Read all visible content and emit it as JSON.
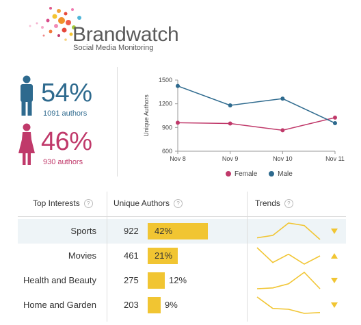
{
  "brand": {
    "name": "Brandwatch",
    "tagline": "Social Media Monitoring"
  },
  "gender": {
    "male": {
      "percent": "54%",
      "authors": "1091 authors",
      "color": "#2e6a8e"
    },
    "female": {
      "percent": "46%",
      "authors": "930 authors",
      "color": "#c0396a"
    }
  },
  "chart_data": {
    "type": "line",
    "ylabel": "Unique Authors",
    "ylim": [
      600,
      1500
    ],
    "yticks": [
      600,
      900,
      1200,
      1500
    ],
    "categories": [
      "Nov 8",
      "Nov 9",
      "Nov 10",
      "Nov 11"
    ],
    "series": [
      {
        "name": "Female",
        "color": "#c0396a",
        "values": [
          960,
          950,
          865,
          1025
        ]
      },
      {
        "name": "Male",
        "color": "#2e6a8e",
        "values": [
          1425,
          1180,
          1265,
          955
        ]
      }
    ],
    "legend_position": "bottom",
    "grid": false
  },
  "table": {
    "headers": {
      "interests": "Top Interests",
      "authors": "Unique Authors",
      "trends": "Trends"
    },
    "rows": [
      {
        "label": "Sports",
        "count": "922",
        "percent": "42%",
        "fraction": 0.42,
        "trend": [
          0.1,
          0.25,
          1.0,
          0.85,
          0.0
        ],
        "direction": "down",
        "selected": true
      },
      {
        "label": "Movies",
        "count": "461",
        "percent": "21%",
        "fraction": 0.21,
        "trend": [
          1.0,
          0.1,
          0.6,
          0.0,
          0.5
        ],
        "direction": "up",
        "selected": false
      },
      {
        "label": "Health and Beauty",
        "count": "275",
        "percent": "12%",
        "fraction": 0.12,
        "trend": [
          0.0,
          0.05,
          0.3,
          1.0,
          0.0
        ],
        "direction": "down",
        "selected": false
      },
      {
        "label": "Home and Garden",
        "count": "203",
        "percent": "9%",
        "fraction": 0.09,
        "trend": [
          1.0,
          0.3,
          0.25,
          0.0,
          0.05
        ],
        "direction": "down",
        "selected": false
      }
    ],
    "trend_color": "#f1c532"
  }
}
